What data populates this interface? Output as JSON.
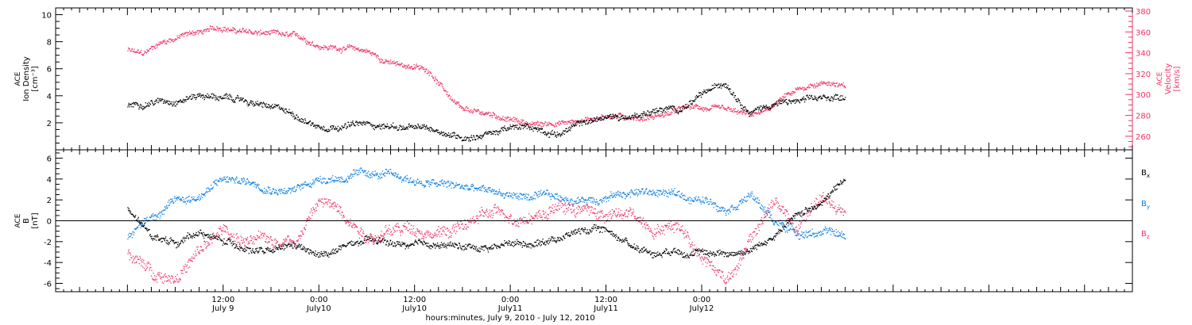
{
  "chart_data": [
    {
      "type": "scatter",
      "panel": "top",
      "ylabel_left": [
        "ACE",
        "Ion Density",
        "[cm⁻³]"
      ],
      "ylabel_right": [
        "ACE",
        "Velocity",
        "[km/s]"
      ],
      "ylim_left": [
        0,
        10.5
      ],
      "yticks_left": [
        2,
        4,
        6,
        8,
        10
      ],
      "ylim_right": [
        247,
        383
      ],
      "yticks_right": [
        260,
        280,
        300,
        320,
        340,
        360,
        380
      ],
      "series": [
        {
          "color": "#000000",
          "axis": "left",
          "x": [
            0,
            3,
            6,
            9,
            12,
            15,
            18,
            21,
            24,
            27,
            30,
            33,
            36,
            39,
            42,
            45,
            48,
            51,
            54,
            57,
            60,
            63,
            66,
            69,
            72,
            75,
            78,
            81,
            84,
            87,
            90
          ],
          "y": [
            3.3,
            3.7,
            3.8,
            4.2,
            3.9,
            3.6,
            3.1,
            2.6,
            1.8,
            2.0,
            1.9,
            1.8,
            1.6,
            1.4,
            1.0,
            1.3,
            1.6,
            1.6,
            1.3,
            2.0,
            2.4,
            2.5,
            3.0,
            3.0,
            4.0,
            5.0,
            3.0,
            3.5,
            3.6,
            3.7,
            4.0
          ]
        },
        {
          "color": "#ee3366",
          "axis": "right",
          "x": [
            0,
            2,
            4,
            6,
            8,
            10,
            12,
            14,
            16,
            18,
            20,
            22,
            24,
            26,
            28,
            30,
            32,
            34,
            36,
            38,
            40,
            42,
            44,
            46,
            48,
            50,
            52,
            54,
            56,
            58,
            60,
            62,
            64,
            66,
            68,
            70,
            72,
            74,
            76,
            78,
            80,
            82,
            84,
            86,
            88,
            90
          ],
          "y": [
            343,
            338,
            350,
            355,
            360,
            361,
            365,
            361,
            359,
            358,
            355,
            353,
            348,
            346,
            345,
            342,
            334,
            328,
            327,
            322,
            302,
            283,
            281,
            280,
            276,
            273,
            271,
            274,
            274,
            278,
            281,
            280,
            279,
            280,
            283,
            287,
            287,
            285,
            281,
            279,
            283,
            295,
            303,
            310,
            313,
            307
          ]
        }
      ]
    },
    {
      "type": "scatter",
      "panel": "bottom",
      "ylabel": [
        "ACE",
        "B",
        "[nT]"
      ],
      "ylim": [
        -6.8,
        6.8
      ],
      "yticks": [
        -6,
        -4,
        -2,
        0,
        2,
        4,
        6
      ],
      "zero_line": true,
      "legend": [
        {
          "label": "B",
          "sub": "x",
          "color": "#000000"
        },
        {
          "label": "B",
          "sub": "y",
          "color": "#0a7fe0"
        },
        {
          "label": "B",
          "sub": "z",
          "color": "#ee3366"
        }
      ],
      "series": [
        {
          "name": "Bx",
          "color": "#000000",
          "x": [
            0,
            3,
            6,
            9,
            12,
            15,
            18,
            21,
            24,
            27,
            30,
            33,
            36,
            39,
            42,
            45,
            48,
            51,
            54,
            57,
            60,
            63,
            66,
            69,
            72,
            75,
            78,
            81,
            84,
            87,
            90
          ],
          "y": [
            1.0,
            -1.5,
            -2.0,
            -1.0,
            -2.0,
            -2.5,
            -3.0,
            -2.5,
            -3.5,
            -2.5,
            -2.0,
            -2.2,
            -2.5,
            -2.3,
            -2.5,
            -2.5,
            -2.0,
            -2.0,
            -1.5,
            -0.8,
            -0.8,
            -2.2,
            -3.0,
            -2.5,
            -3.0,
            -3.0,
            -2.8,
            -1.5,
            0.5,
            2.0,
            4.0
          ]
        },
        {
          "name": "By",
          "color": "#0a7fe0",
          "x": [
            0,
            3,
            6,
            9,
            12,
            15,
            18,
            21,
            24,
            27,
            30,
            33,
            36,
            39,
            42,
            45,
            48,
            51,
            54,
            57,
            60,
            63,
            66,
            69,
            72,
            75,
            78,
            81,
            84,
            87,
            90
          ],
          "y": [
            -1.5,
            0.5,
            2.0,
            2.5,
            4.0,
            3.8,
            3.5,
            3.0,
            4.2,
            4.3,
            4.5,
            4.2,
            3.8,
            3.5,
            3.2,
            2.8,
            2.5,
            2.3,
            2.0,
            2.0,
            2.5,
            2.8,
            2.8,
            2.5,
            2.0,
            1.5,
            2.8,
            0.0,
            -1.0,
            -1.0,
            -1.5
          ]
        },
        {
          "name": "Bz",
          "color": "#ee3366",
          "x": [
            0,
            3,
            6,
            9,
            12,
            15,
            18,
            21,
            24,
            27,
            30,
            33,
            36,
            39,
            42,
            45,
            48,
            51,
            54,
            57,
            60,
            63,
            66,
            69,
            72,
            75,
            78,
            81,
            84,
            87,
            90
          ],
          "y": [
            -3.0,
            -5.0,
            -5.0,
            -3.0,
            -1.0,
            -2.0,
            -2.0,
            -1.5,
            2.0,
            1.0,
            -1.0,
            -1.0,
            -0.5,
            -1.0,
            -0.5,
            0.5,
            0.5,
            0.8,
            1.5,
            1.2,
            0.5,
            0.5,
            -0.5,
            0.0,
            -3.0,
            -5.5,
            -2.0,
            2.0,
            -1.0,
            2.5,
            0.5
          ]
        }
      ]
    }
  ],
  "x_axis": {
    "range_hours": [
      -9,
      126
    ],
    "major_ticks": [
      {
        "hour": 12,
        "line1": "12:00",
        "line2": "July 9"
      },
      {
        "hour": 24,
        "line1": "0:00",
        "line2": "July10"
      },
      {
        "hour": 36,
        "line1": "12:00",
        "line2": "July10"
      },
      {
        "hour": 48,
        "line1": "0:00",
        "line2": "July11"
      },
      {
        "hour": 60,
        "line1": "12:00",
        "line2": "July11"
      },
      {
        "hour": 72,
        "line1": "0:00",
        "line2": "July12"
      }
    ],
    "xlabel": "hours:minutes, July  9, 2010 - July 12, 2010"
  }
}
